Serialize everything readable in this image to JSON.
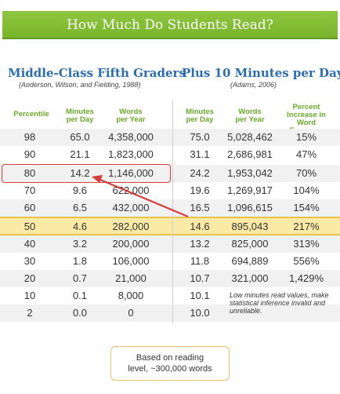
{
  "title": "How Much Do Students Read?",
  "left_section": {
    "heading": "Middle-Class Fifth Graders",
    "citation": "(Anderson, Wilson, and Fielding, 1988)"
  },
  "right_section": {
    "heading": "Plus 10 Minutes per Day...",
    "citation": "(Adams, 2006)"
  },
  "headers": {
    "percentile": "Percentile",
    "minutes_left": [
      "Minutes",
      "per Day"
    ],
    "words_left": [
      "Words",
      "per Year"
    ],
    "minutes_right": [
      "Minutes",
      "per Day"
    ],
    "words_right": [
      "Words",
      "per Year"
    ],
    "increase": [
      "Percent",
      "Increase in",
      "Word Exposure"
    ]
  },
  "rows": [
    {
      "percentile": "98",
      "minutes": "65.0",
      "words": "4,358,000",
      "plus_minutes": "75.0",
      "plus_words": "5,028,462",
      "increase": "15%"
    },
    {
      "percentile": "90",
      "minutes": "21.1",
      "words": "1,823,000",
      "plus_minutes": "31.1",
      "plus_words": "2,686,981",
      "increase": "47%"
    },
    {
      "percentile": "80",
      "minutes": "14.2",
      "words": "1,146,000",
      "plus_minutes": "24.2",
      "plus_words": "1,953,042",
      "increase": "70%"
    },
    {
      "percentile": "70",
      "minutes": "9.6",
      "words": "622,000",
      "plus_minutes": "19.6",
      "plus_words": "1,269,917",
      "increase": "104%"
    },
    {
      "percentile": "60",
      "minutes": "6.5",
      "words": "432,000",
      "plus_minutes": "16.5",
      "plus_words": "1,096,615",
      "increase": "154%"
    },
    {
      "percentile": "50",
      "minutes": "4.6",
      "words": "282,000",
      "plus_minutes": "14.6",
      "plus_words": "895,043",
      "increase": "217%"
    },
    {
      "percentile": "40",
      "minutes": "3.2",
      "words": "200,000",
      "plus_minutes": "13.2",
      "plus_words": "825,000",
      "increase": "313%"
    },
    {
      "percentile": "30",
      "minutes": "1.8",
      "words": "106,000",
      "plus_minutes": "11.8",
      "plus_words": "694,889",
      "increase": "556%"
    },
    {
      "percentile": "20",
      "minutes": "0.7",
      "words": "21,000",
      "plus_minutes": "10.7",
      "plus_words": "321,000",
      "increase": "1,429%"
    },
    {
      "percentile": "10",
      "minutes": "0.1",
      "words": "8,000",
      "plus_minutes": "10.1",
      "plus_words": "",
      "increase": ""
    },
    {
      "percentile": "2",
      "minutes": "0.0",
      "words": "0",
      "plus_minutes": "10.0",
      "plus_words": "",
      "increase": ""
    }
  ],
  "note": "Low minutes read values, make statistical inference invalid and unreliable.",
  "footnote": [
    "Based on reading",
    "level, ~300,000 words"
  ],
  "colors": {
    "banner": "#7fbc33",
    "heading": "#2a6db2",
    "header_text": "#6aa82a",
    "highlight_row": "#fbeaa5",
    "annotation": "#d63c3c"
  }
}
